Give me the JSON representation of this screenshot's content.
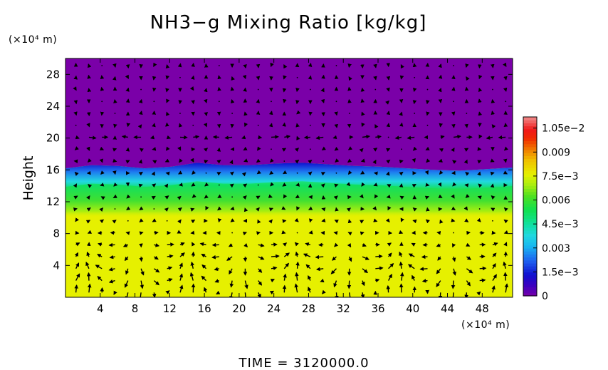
{
  "chart_data": {
    "type": "heatmap",
    "title": "NH3−g Mixing Ratio [kg/kg]",
    "ylabel": "Height",
    "x_unit": "(×10⁴ m)",
    "y_unit": "(×10⁴ m)",
    "xlim": [
      0,
      51.5
    ],
    "ylim": [
      0,
      30
    ],
    "x_ticks": [
      4,
      8,
      12,
      16,
      20,
      24,
      28,
      32,
      36,
      40,
      44,
      48
    ],
    "y_ticks": [
      4,
      8,
      12,
      16,
      20,
      24,
      28
    ],
    "colorbar": {
      "ticks": [
        0,
        0.0015,
        0.003,
        0.0045,
        0.006,
        0.0075,
        0.009,
        0.0105
      ],
      "tick_labels": [
        "0",
        "1.5e−3",
        "0.003",
        "4.5e−3",
        "0.006",
        "7.5e−3",
        "0.009",
        "1.05e−2"
      ],
      "range": [
        0,
        0.0112
      ]
    },
    "field": {
      "upper_value": 0,
      "lower_value": 0.0073,
      "interface_height": [
        16.2,
        16.6,
        16.5,
        16.2,
        16.4,
        16.9,
        16.6,
        16.6,
        16.8,
        16.9,
        16.7,
        16.5,
        16.4,
        16.2,
        16.0,
        15.9,
        16.1,
        16.3
      ],
      "green_band": [
        11.6,
        15.4
      ],
      "band_value": 0.0058
    },
    "time_label": "TIME  =  3120000.0"
  }
}
